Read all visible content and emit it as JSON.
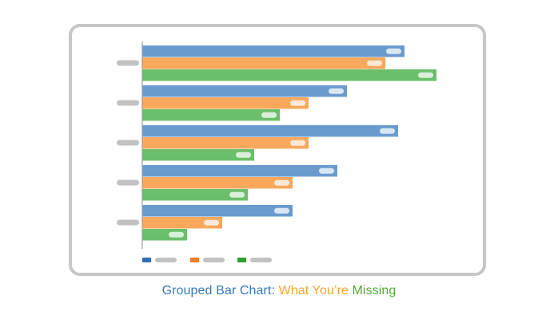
{
  "figure": {
    "caption": {
      "part1": "Grouped Bar Chart:",
      "part2": "What You’re",
      "part3": "Missing",
      "color1": "#3a78b8",
      "color2": "#f5a632",
      "color3": "#52a83c"
    },
    "frame_border_color": "#c7c7c7",
    "placeholder_color": "#c2c2c2"
  },
  "chart_data": {
    "type": "bar",
    "orientation": "horizontal",
    "categories": [
      "",
      "",
      "",
      "",
      ""
    ],
    "series": [
      {
        "color": "#6a9bcf",
        "legend_color": "#2f6fb5",
        "values": [
          82,
          64,
          80,
          61,
          47
        ]
      },
      {
        "color": "#f9a85c",
        "legend_color": "#f47c20",
        "values": [
          76,
          52,
          52,
          47,
          25
        ]
      },
      {
        "color": "#6bbf6a",
        "legend_color": "#2ca02c",
        "values": [
          92,
          43,
          35,
          33,
          14
        ]
      }
    ],
    "data_labels": "placeholder",
    "legend": "bottom-left",
    "grid": false
  }
}
